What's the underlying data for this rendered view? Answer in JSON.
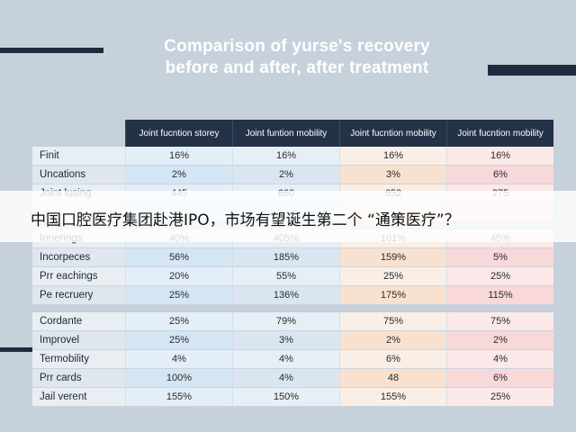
{
  "title": {
    "line1": "Comparison of yurse's recovery",
    "line2": "before and after, after treatment"
  },
  "headline": "中国口腔医疗集团赴港IPO，市场有望诞生第二个 “通策医疗”？",
  "colors": {
    "background": "#c6d1dc",
    "header": "#243247",
    "col_blue": "#e3eef8",
    "col_orange": "#f9efe6",
    "col_pink": "#fbe9e9"
  },
  "chart_data": {
    "type": "table",
    "title": "Comparison of yurse's recovery before and after, after treatment",
    "columns": [
      "Joint fucntion storey",
      "Joint funtion mobility",
      "Joint fucntion mobility",
      "Joint fucntion mobility"
    ],
    "rows": [
      {
        "label": "Finit",
        "values": [
          "16%",
          "16%",
          "16%",
          "16%"
        ]
      },
      {
        "label": "Uncations",
        "values": [
          "2%",
          "2%",
          "3%",
          "6%"
        ]
      },
      {
        "label": "Joint lusing",
        "values": [
          "445",
          "660",
          "652",
          "275"
        ]
      },
      {
        "label": "",
        "values": [
          "",
          "",
          "",
          ""
        ]
      },
      {
        "label": "Innerings",
        "values": [
          "40%",
          "405%",
          "101%",
          "45%"
        ]
      },
      {
        "label": "Incorpeces",
        "values": [
          "56%",
          "185%",
          "159%",
          "5%"
        ]
      },
      {
        "label": "Prr eachings",
        "values": [
          "20%",
          "55%",
          "25%",
          "25%"
        ]
      },
      {
        "label": "Pe recruery",
        "values": [
          "25%",
          "136%",
          "175%",
          "115%"
        ]
      },
      {
        "label": "Cordante",
        "values": [
          "25%",
          "79%",
          "75%",
          "75%"
        ]
      },
      {
        "label": "Improvel",
        "values": [
          "25%",
          "3%",
          "2%",
          "2%"
        ]
      },
      {
        "label": "Termobility",
        "values": [
          "4%",
          "4%",
          "6%",
          "4%"
        ]
      },
      {
        "label": "Prr cards",
        "values": [
          "100%",
          "4%",
          "48",
          "6%"
        ]
      },
      {
        "label": "Jail verent",
        "values": [
          "155%",
          "150%",
          "155%",
          "25%"
        ]
      }
    ]
  }
}
